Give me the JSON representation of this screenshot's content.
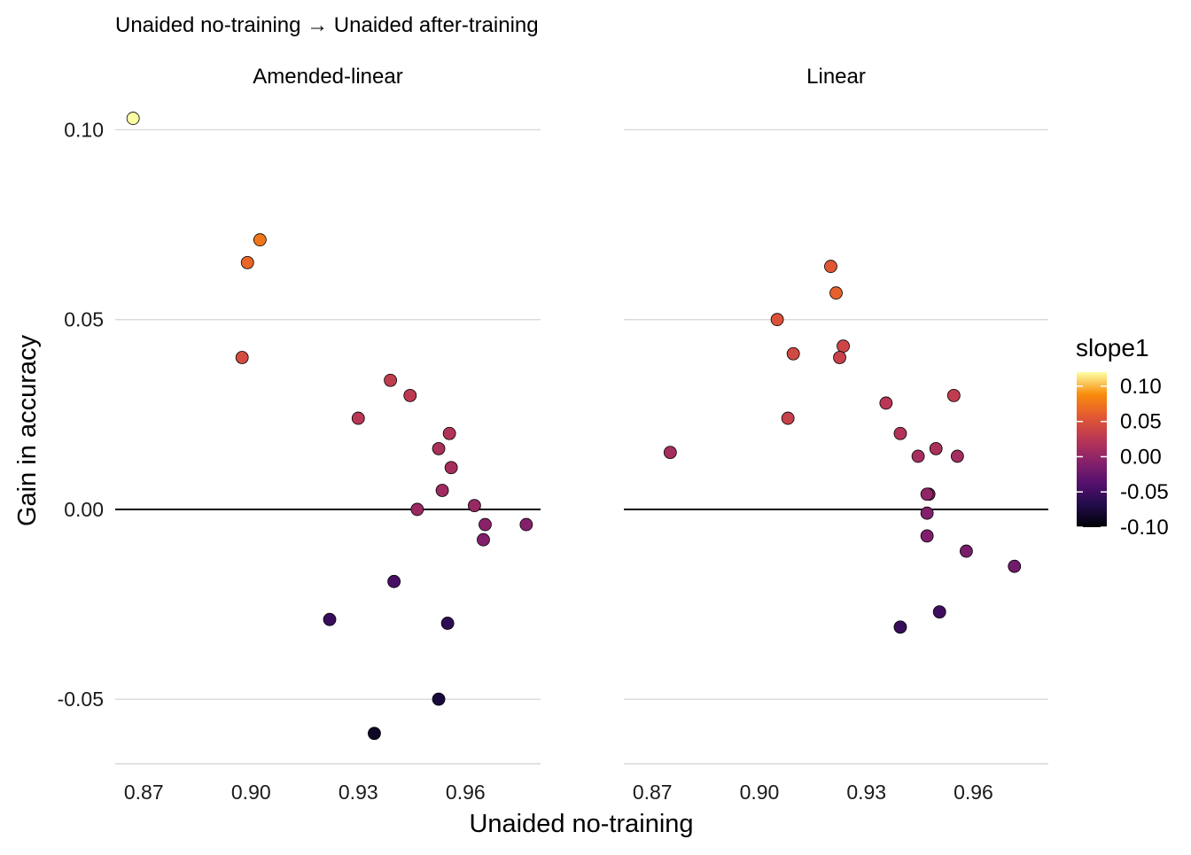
{
  "subtitle": "Unaided no-training → Unaided after-training",
  "chart_data": {
    "type": "scatter",
    "xlabel": "Unaided no-training",
    "ylabel": "Gain in accuracy",
    "xlim": [
      0.862,
      0.981
    ],
    "ylim": [
      -0.067,
      0.105
    ],
    "x_ticks": [
      "0.87",
      "0.90",
      "0.93",
      "0.96"
    ],
    "y_ticks": [
      "0.10",
      "0.05",
      "0.00",
      "-0.05"
    ],
    "reference_line_y": 0,
    "grid": "horizontal major only",
    "color_variable": "slope1",
    "color_scale": {
      "name": "inferno",
      "domain": [
        -0.1,
        0.12
      ],
      "ticks": [
        "0.10",
        "0.05",
        "0.00",
        "-0.05",
        "-0.10"
      ]
    },
    "legend_position": "right",
    "panels": [
      {
        "title": "Amended-linear",
        "points": [
          {
            "x": 0.867,
            "y": 0.103,
            "slope1": 0.12
          },
          {
            "x": 0.9025,
            "y": 0.071,
            "slope1": 0.075
          },
          {
            "x": 0.899,
            "y": 0.065,
            "slope1": 0.065
          },
          {
            "x": 0.8975,
            "y": 0.04,
            "slope1": 0.045
          },
          {
            "x": 0.939,
            "y": 0.034,
            "slope1": 0.03
          },
          {
            "x": 0.9445,
            "y": 0.03,
            "slope1": 0.028
          },
          {
            "x": 0.93,
            "y": 0.024,
            "slope1": 0.025
          },
          {
            "x": 0.9555,
            "y": 0.02,
            "slope1": 0.02
          },
          {
            "x": 0.9525,
            "y": 0.016,
            "slope1": 0.015
          },
          {
            "x": 0.956,
            "y": 0.011,
            "slope1": 0.012
          },
          {
            "x": 0.9535,
            "y": 0.005,
            "slope1": 0.008
          },
          {
            "x": 0.9465,
            "y": 0.0,
            "slope1": 0.005
          },
          {
            "x": 0.9625,
            "y": 0.001,
            "slope1": 0.003
          },
          {
            "x": 0.9655,
            "y": -0.004,
            "slope1": -0.005
          },
          {
            "x": 0.965,
            "y": -0.008,
            "slope1": -0.01
          },
          {
            "x": 0.977,
            "y": -0.004,
            "slope1": -0.008
          },
          {
            "x": 0.94,
            "y": -0.019,
            "slope1": -0.045
          },
          {
            "x": 0.922,
            "y": -0.029,
            "slope1": -0.055
          },
          {
            "x": 0.955,
            "y": -0.03,
            "slope1": -0.06
          },
          {
            "x": 0.9525,
            "y": -0.05,
            "slope1": -0.075
          },
          {
            "x": 0.9345,
            "y": -0.059,
            "slope1": -0.085
          }
        ]
      },
      {
        "title": "Linear",
        "points": [
          {
            "x": 0.92,
            "y": 0.064,
            "slope1": 0.055
          },
          {
            "x": 0.9215,
            "y": 0.057,
            "slope1": 0.062
          },
          {
            "x": 0.905,
            "y": 0.05,
            "slope1": 0.05
          },
          {
            "x": 0.9235,
            "y": 0.043,
            "slope1": 0.04
          },
          {
            "x": 0.9095,
            "y": 0.041,
            "slope1": 0.042
          },
          {
            "x": 0.9225,
            "y": 0.04,
            "slope1": 0.035
          },
          {
            "x": 0.9545,
            "y": 0.03,
            "slope1": 0.03
          },
          {
            "x": 0.9355,
            "y": 0.028,
            "slope1": 0.025
          },
          {
            "x": 0.908,
            "y": 0.024,
            "slope1": 0.035
          },
          {
            "x": 0.9395,
            "y": 0.02,
            "slope1": 0.02
          },
          {
            "x": 0.9495,
            "y": 0.016,
            "slope1": 0.015
          },
          {
            "x": 0.875,
            "y": 0.015,
            "slope1": 0.012
          },
          {
            "x": 0.9445,
            "y": 0.014,
            "slope1": 0.012
          },
          {
            "x": 0.9555,
            "y": 0.014,
            "slope1": 0.01
          },
          {
            "x": 0.9475,
            "y": 0.004,
            "slope1": -0.005
          },
          {
            "x": 0.947,
            "y": 0.004,
            "slope1": -0.002
          },
          {
            "x": 0.947,
            "y": -0.001,
            "slope1": -0.01
          },
          {
            "x": 0.947,
            "y": -0.007,
            "slope1": -0.012
          },
          {
            "x": 0.958,
            "y": -0.011,
            "slope1": -0.015
          },
          {
            "x": 0.9715,
            "y": -0.015,
            "slope1": -0.02
          },
          {
            "x": 0.9505,
            "y": -0.027,
            "slope1": -0.05
          },
          {
            "x": 0.9395,
            "y": -0.031,
            "slope1": -0.055
          }
        ]
      }
    ]
  }
}
